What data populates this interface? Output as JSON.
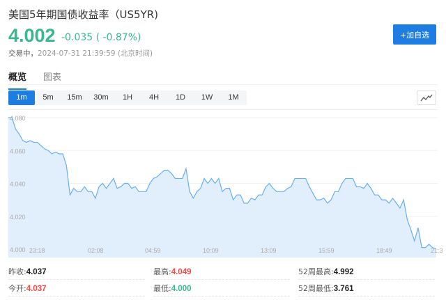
{
  "header": {
    "title": "美国5年期国债收益率（US5YR)",
    "price": "4.002",
    "change": "-0.035 ( -0.87%)",
    "status": "交易中，",
    "timestamp": "2024-07-31 21:39:59 (北京时间)",
    "add_button": "+加自选"
  },
  "tabs": [
    {
      "label": "概览"
    },
    {
      "label": "图表"
    }
  ],
  "timeframes": [
    "1m",
    "5m",
    "15m",
    "30m",
    "1H",
    "4H",
    "1D",
    "1W",
    "1M"
  ],
  "selected_timeframe": "1m",
  "colors": {
    "accent": "#1e7de1",
    "down": "#3bb78f",
    "up": "#f04b4b",
    "line": "#6aaef0",
    "fill": "#e1effd"
  },
  "chart_data": {
    "type": "area",
    "ylim": [
      4.0,
      4.08
    ],
    "yticks": [
      "4.080",
      "4.060",
      "4.040",
      "4.020",
      "4.000"
    ],
    "xticks": [
      "23:18",
      "02:08",
      "04:59",
      "10:09",
      "13:09",
      "15:59",
      "18:49",
      "21:3"
    ],
    "grid": true,
    "values": [
      4.08,
      4.08,
      4.073,
      4.07,
      4.066,
      4.065,
      4.066,
      4.065,
      4.065,
      4.063,
      4.061,
      4.06,
      4.058,
      4.059,
      4.058,
      4.058,
      4.051,
      4.033,
      4.037,
      4.035,
      4.035,
      4.038,
      4.035,
      4.035,
      4.031,
      4.038,
      4.04,
      4.037,
      4.04,
      4.043,
      4.037,
      4.038,
      4.04,
      4.04,
      4.037,
      4.038,
      4.035,
      4.035,
      4.035,
      4.04,
      4.043,
      4.044,
      4.046,
      4.048,
      4.048,
      4.046,
      4.043,
      4.043,
      4.043,
      4.049,
      4.035,
      4.031,
      4.035,
      4.037,
      4.043,
      4.04,
      4.043,
      4.04,
      4.043,
      4.035,
      4.037,
      4.037,
      4.03,
      4.033,
      4.033,
      4.028,
      4.028,
      4.031,
      4.03,
      4.033,
      4.033,
      4.038,
      4.04,
      4.037,
      4.035,
      4.035,
      4.035,
      4.037,
      4.038,
      4.043,
      4.043,
      4.043,
      4.043,
      4.038,
      4.034,
      4.03,
      4.03,
      4.031,
      4.028,
      4.03,
      4.035,
      4.035,
      4.04,
      4.043,
      4.043,
      4.043,
      4.038,
      4.038,
      4.037,
      4.04,
      4.037,
      4.033,
      4.033,
      4.03,
      4.03,
      4.028,
      4.031,
      4.028,
      4.025,
      4.03,
      4.018,
      4.012,
      4.005,
      4.013,
      4.001,
      4.001,
      4.003,
      4.001,
      4.0
    ]
  },
  "stats": [
    [
      {
        "label": "昨收:",
        "value": "4.037",
        "color": "normal"
      },
      {
        "label": "最高:",
        "value": "4.049",
        "color": "red"
      },
      {
        "label": "52周最高:",
        "value": "4.992",
        "color": "normal"
      }
    ],
    [
      {
        "label": "今开:",
        "value": "4.037",
        "color": "red"
      },
      {
        "label": "最低:",
        "value": "4.000",
        "color": "green"
      },
      {
        "label": "52周最低:",
        "value": "3.761",
        "color": "normal"
      }
    ]
  ]
}
